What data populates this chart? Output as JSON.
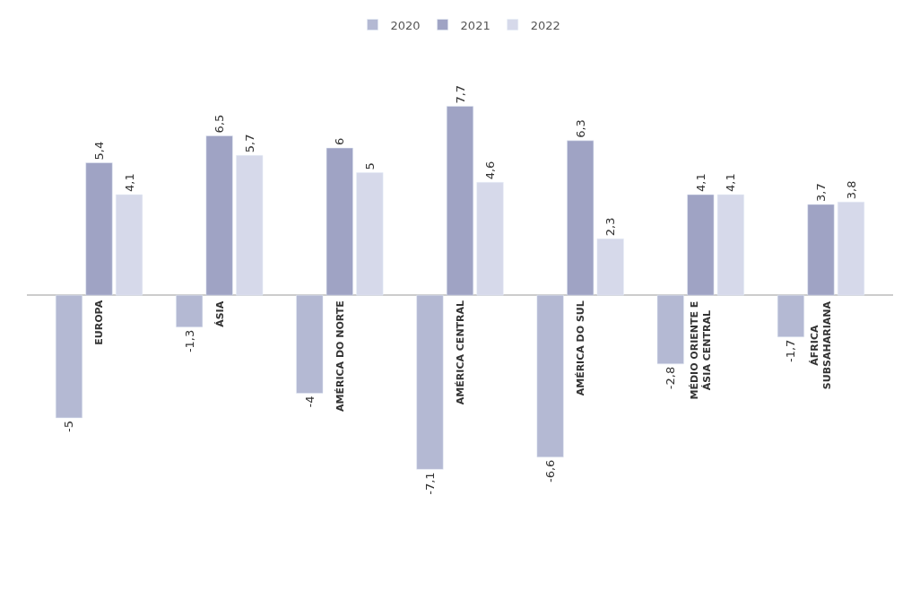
{
  "chart_data": {
    "type": "bar",
    "relative": false,
    "categories": [
      "EUROPA",
      "ÁSIA",
      "AMÉRICA DO NORTE",
      "AMÉRICA CENTRAL",
      "AMÉRICA DO SUL",
      "MÉDIO ORIENTE E ÁSIA CENTRAL",
      "ÁFRICA SUBSAHARIANA"
    ],
    "series": [
      {
        "name": "2020",
        "color": "#b4b9d3",
        "values": [
          -5,
          -1.3,
          -4,
          -7.1,
          -6.6,
          -2.8,
          -1.7
        ],
        "value_labels": [
          "-5",
          "-1,3",
          "-4",
          "-7,1",
          "-6,6",
          "-2,8",
          "-1,7"
        ]
      },
      {
        "name": "2021",
        "color": "#9fa3c4",
        "values": [
          5.4,
          6.5,
          6,
          7.7,
          6.3,
          4.1,
          3.7
        ],
        "value_labels": [
          "5,4",
          "6,5",
          "6",
          "7,7",
          "6,3",
          "4,1",
          "3,7"
        ]
      },
      {
        "name": "2022",
        "color": "#d6d9ea",
        "values": [
          4.1,
          5.7,
          5,
          4.6,
          2.3,
          4.1,
          3.8
        ],
        "value_labels": [
          "4,1",
          "5,7",
          "5",
          "4,6",
          "2,3",
          "4,1",
          "3,8"
        ]
      }
    ],
    "legend": "top"
  }
}
